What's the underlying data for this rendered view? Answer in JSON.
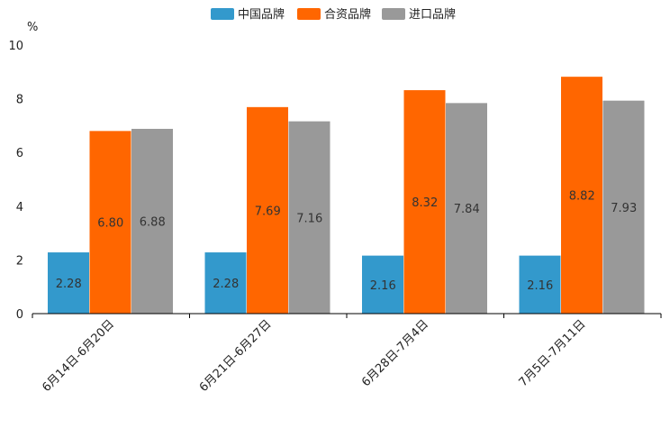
{
  "chart_data": {
    "type": "bar",
    "unit_label": "%",
    "categories": [
      "6月14日-6月20日",
      "6月21日-6月27日",
      "6月28日-7月4日",
      "7月5日-7月11日"
    ],
    "series": [
      {
        "name": "中国品牌",
        "color": "#3399cc",
        "values": [
          2.28,
          2.28,
          2.16,
          2.16
        ]
      },
      {
        "name": "合资品牌",
        "color": "#ff6600",
        "values": [
          6.8,
          7.69,
          8.32,
          8.82
        ]
      },
      {
        "name": "进口品牌",
        "color": "#999999",
        "values": [
          6.88,
          7.16,
          7.84,
          7.93
        ]
      }
    ],
    "ylim": [
      0,
      10
    ],
    "yticks": [
      0,
      2,
      4,
      6,
      8,
      10
    ],
    "legend_position": "top-center",
    "grid": false
  }
}
